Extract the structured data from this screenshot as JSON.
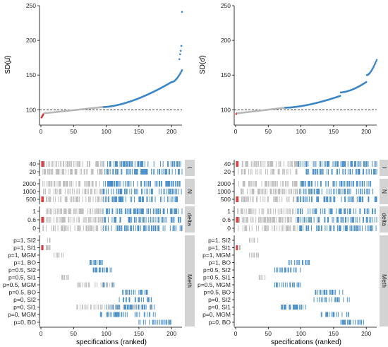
{
  "chart_data": [
    {
      "type": "scatter",
      "panel": "left-top",
      "ylabel": "SD(μ̂)",
      "xlim": [
        0,
        216
      ],
      "ylim": [
        80,
        250
      ],
      "xticks": [
        0,
        50,
        100,
        150,
        200
      ],
      "yticks": [
        100,
        150,
        200,
        250
      ],
      "reference_line": 100,
      "n_specs": 216,
      "segments": [
        {
          "color": "#d62728",
          "from": 1,
          "to": 4,
          "y_from": 89,
          "y_to": 94
        },
        {
          "color": "#b8b8b8",
          "from": 5,
          "to": 95,
          "y_from": 95,
          "y_to": 104
        },
        {
          "color": "#3b86c6",
          "from": 96,
          "to": 200,
          "y_from": 104,
          "y_to": 140
        },
        {
          "color": "#3b86c6",
          "from": 201,
          "to": 216,
          "y_from": 140,
          "y_to": 157
        }
      ],
      "outliers": [
        {
          "x": 212,
          "y": 173
        },
        {
          "x": 213,
          "y": 180
        },
        {
          "x": 214,
          "y": 185
        },
        {
          "x": 215,
          "y": 192
        },
        {
          "x": 216,
          "y": 241
        }
      ]
    },
    {
      "type": "scatter",
      "panel": "right-top",
      "ylabel": "SD(σ̂)",
      "xlim": [
        0,
        216
      ],
      "ylim": [
        80,
        250
      ],
      "xticks": [
        0,
        50,
        100,
        150,
        200
      ],
      "yticks": [
        100,
        150,
        200,
        250
      ],
      "reference_line": 100,
      "n_specs": 216,
      "segments": [
        {
          "color": "#d62728",
          "from": 1,
          "to": 2,
          "y_from": 94,
          "y_to": 95
        },
        {
          "color": "#b8b8b8",
          "from": 3,
          "to": 75,
          "y_from": 95,
          "y_to": 103
        },
        {
          "color": "#3b86c6",
          "from": 76,
          "to": 160,
          "y_from": 103,
          "y_to": 120
        },
        {
          "color": "#3b86c6",
          "from": 161,
          "to": 200,
          "y_from": 125,
          "y_to": 140
        },
        {
          "color": "#3b86c6",
          "from": 201,
          "to": 216,
          "y_from": 150,
          "y_to": 172
        }
      ],
      "outliers": []
    },
    {
      "type": "specification_strips",
      "panel": "left-bottom",
      "xlabel": "specifications (ranked)",
      "xticks": [
        0,
        50,
        100,
        150,
        200
      ],
      "groups": [
        {
          "name": "I",
          "levels": [
            "40",
            "20"
          ]
        },
        {
          "name": "N",
          "levels": [
            "2000",
            "1000",
            "500"
          ]
        },
        {
          "name": "delta",
          "levels": [
            "1",
            "0.6",
            "0"
          ]
        },
        {
          "name": "Meth",
          "levels": [
            "p=1, SI2",
            "p=1, SI1",
            "p=1, MGM",
            "p=1, BO",
            "p=0.5, SI2",
            "p=0.5, SI1",
            "p=0.5, MGM",
            "p=0.5, BO",
            "p=0, SI2",
            "p=0, SI1",
            "p=0, MGM",
            "p=0, BO"
          ]
        }
      ]
    },
    {
      "type": "specification_strips",
      "panel": "right-bottom",
      "xlabel": "specifications (ranked)",
      "xticks": [
        0,
        50,
        100,
        150,
        200
      ],
      "groups": [
        {
          "name": "I",
          "levels": [
            "40",
            "20"
          ]
        },
        {
          "name": "N",
          "levels": [
            "2000",
            "1000",
            "500"
          ]
        },
        {
          "name": "delta",
          "levels": [
            "1",
            "0.6",
            "0"
          ]
        },
        {
          "name": "Meth",
          "levels": [
            "p=1, SI2",
            "p=1, SI1",
            "p=1, MGM",
            "p=1, BO",
            "p=0.5, SI2",
            "p=0.5, SI1",
            "p=0.5, MGM",
            "p=0.5, BO",
            "p=0, SI2",
            "p=0, SI1",
            "p=0, MGM",
            "p=0, BO"
          ]
        }
      ]
    }
  ]
}
